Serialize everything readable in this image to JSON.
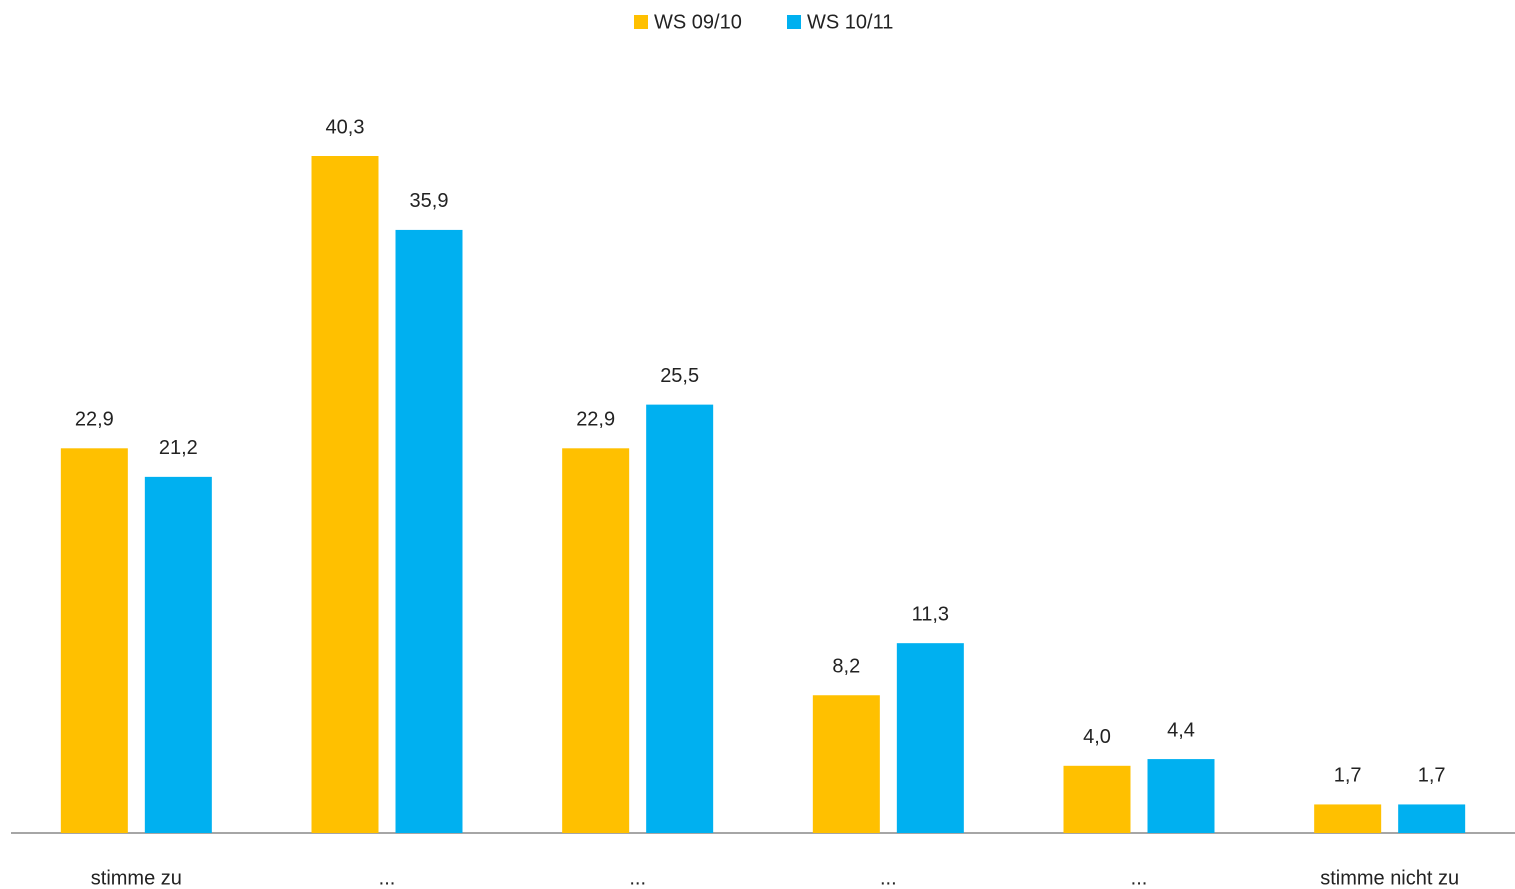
{
  "chart_data": {
    "type": "bar",
    "categories": [
      "stimme zu",
      "...",
      "...",
      "...",
      "...",
      "stimme nicht zu"
    ],
    "series": [
      {
        "name": "WS 09/10",
        "color": "#FFC000",
        "values": [
          22.9,
          40.3,
          22.9,
          8.2,
          4.0,
          1.7
        ],
        "value_labels": [
          "22,9",
          "40,3",
          "22,9",
          "8,2",
          "4,0",
          "1,7"
        ]
      },
      {
        "name": "WS 10/11",
        "color": "#00B0F0",
        "values": [
          21.2,
          35.9,
          25.5,
          11.3,
          4.4,
          1.7
        ],
        "value_labels": [
          "21,2",
          "35,9",
          "25,5",
          "11,3",
          "4,4",
          "1,7"
        ]
      }
    ],
    "legend": "top"
  }
}
